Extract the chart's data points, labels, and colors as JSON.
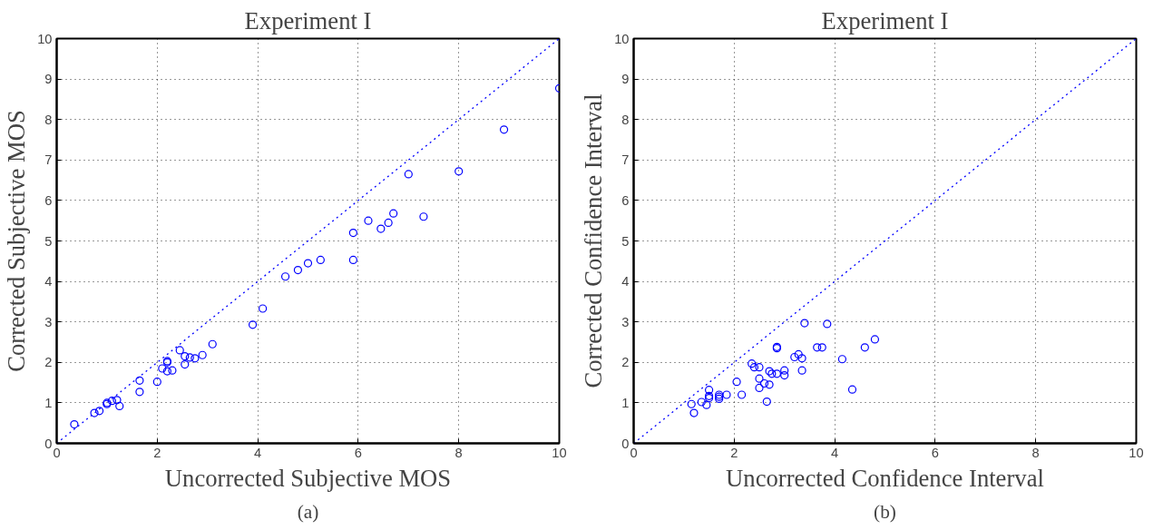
{
  "chart_data": [
    {
      "type": "scatter",
      "title": "Experiment I",
      "xlabel": "Uncorrected Subjective MOS",
      "ylabel": "Corrected Subjective MOS",
      "annotations": [
        "(a)"
      ],
      "xlim": [
        0,
        10
      ],
      "ylim": [
        0,
        10
      ],
      "xticks": [
        0,
        2,
        4,
        6,
        8,
        10
      ],
      "yticks": [
        0,
        1,
        2,
        3,
        4,
        5,
        6,
        7,
        8,
        9,
        10
      ],
      "grid": true,
      "marker": "circle",
      "series": [
        {
          "color": "#0000ff",
          "x": [
            0.35,
            0.75,
            0.85,
            1.0,
            1.0,
            1.1,
            1.2,
            1.25,
            1.65,
            1.65,
            2.0,
            2.1,
            2.2,
            2.2,
            2.2,
            2.3,
            2.45,
            2.55,
            2.55,
            2.65,
            2.75,
            2.9,
            3.1,
            3.9,
            4.1,
            4.55,
            4.8,
            5.0,
            5.25,
            5.9,
            5.9,
            6.2,
            6.45,
            6.6,
            6.7,
            7.0,
            7.3,
            8.0,
            8.9,
            10.0
          ],
          "values": [
            0.47,
            0.75,
            0.8,
            0.97,
            1.0,
            1.05,
            1.07,
            0.92,
            1.55,
            1.27,
            1.52,
            1.85,
            2.0,
            2.03,
            1.78,
            1.8,
            2.3,
            1.95,
            2.15,
            2.12,
            2.1,
            2.18,
            2.45,
            2.93,
            3.33,
            4.12,
            4.28,
            4.45,
            4.53,
            5.2,
            4.53,
            5.5,
            5.3,
            5.45,
            5.68,
            6.65,
            5.6,
            6.72,
            7.75,
            8.77
          ]
        },
        {
          "type": "line",
          "color": "#0000ff",
          "line_style": "dotted",
          "marker": "none",
          "x": [
            0,
            10
          ],
          "values": [
            0,
            10
          ]
        }
      ]
    },
    {
      "type": "scatter",
      "title": "Experiment I",
      "xlabel": "Uncorrected Confidence Interval",
      "ylabel": "Corrected Confidence Interval",
      "annotations": [
        "(b)"
      ],
      "xlim": [
        0,
        10
      ],
      "ylim": [
        0,
        10
      ],
      "xticks": [
        0,
        2,
        4,
        6,
        8,
        10
      ],
      "yticks": [
        0,
        1,
        2,
        3,
        4,
        5,
        6,
        7,
        8,
        9,
        10
      ],
      "grid": true,
      "marker": "circle",
      "series": [
        {
          "color": "#0000ff",
          "x": [
            1.15,
            1.2,
            1.35,
            1.45,
            1.5,
            1.5,
            1.5,
            1.7,
            1.7,
            1.7,
            1.85,
            2.05,
            2.15,
            2.35,
            2.4,
            2.5,
            2.5,
            2.5,
            2.6,
            2.65,
            2.7,
            2.7,
            2.75,
            2.85,
            2.85,
            2.85,
            3.0,
            3.0,
            3.2,
            3.28,
            3.35,
            3.35,
            3.4,
            3.65,
            3.75,
            3.85,
            4.15,
            4.35,
            4.6,
            4.8
          ],
          "values": [
            0.97,
            0.75,
            1.02,
            0.95,
            1.32,
            1.17,
            1.12,
            1.15,
            1.2,
            1.1,
            1.2,
            1.52,
            1.2,
            1.97,
            1.88,
            1.88,
            1.6,
            1.37,
            1.48,
            1.03,
            1.45,
            1.78,
            1.72,
            1.72,
            2.35,
            2.38,
            1.8,
            1.68,
            2.13,
            2.2,
            2.1,
            1.8,
            2.97,
            2.37,
            2.37,
            2.95,
            2.08,
            1.33,
            2.37,
            2.57
          ]
        },
        {
          "type": "line",
          "color": "#0000ff",
          "line_style": "dotted",
          "marker": "none",
          "x": [
            0,
            10
          ],
          "values": [
            0,
            10
          ]
        }
      ]
    }
  ]
}
